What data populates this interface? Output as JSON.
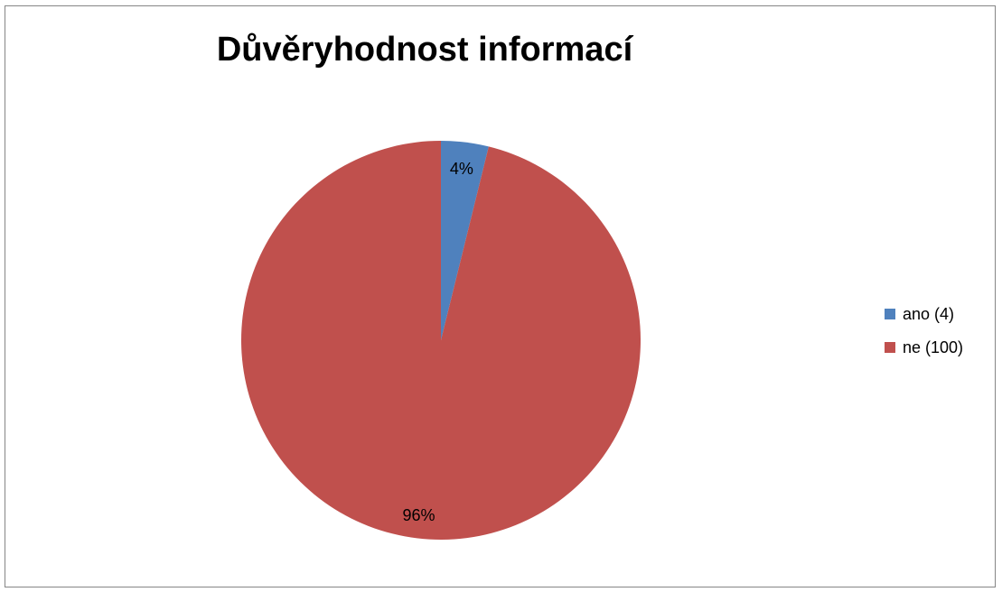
{
  "chart_data": {
    "type": "pie",
    "title": "Důvěryhodnost informací",
    "categories": [
      "ano (4)",
      "ne (100)"
    ],
    "values": [
      4,
      100
    ],
    "percent_labels": [
      "4%",
      "96%"
    ],
    "colors": [
      "#4F81BD",
      "#C0504D"
    ],
    "legend_position": "right"
  }
}
